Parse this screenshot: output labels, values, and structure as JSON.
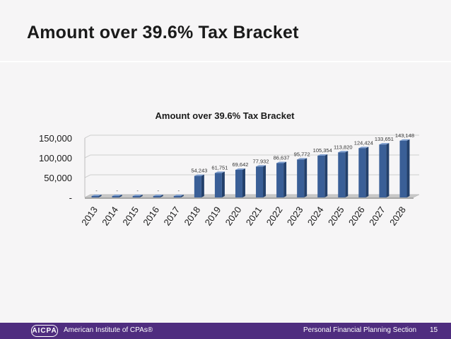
{
  "slide": {
    "title": "Amount over 39.6% Tax Bracket"
  },
  "footer": {
    "logo_text": "AICPA",
    "org_name": "American Institute of CPAs®",
    "section": "Personal Financial Planning Section",
    "page_number": "15"
  },
  "colors": {
    "bar": "#3a5f97",
    "footer": "#4f2d7f"
  },
  "chart_data": {
    "type": "bar",
    "title": "Amount over 39.6% Tax Bracket",
    "categories": [
      "2013",
      "2014",
      "2015",
      "2016",
      "2017",
      "2018",
      "2019",
      "2020",
      "2021",
      "2022",
      "2023",
      "2024",
      "2025",
      "2026",
      "2027",
      "2028"
    ],
    "values": [
      0,
      0,
      0,
      0,
      0,
      54243,
      61751,
      69642,
      77932,
      86637,
      95772,
      105354,
      113820,
      124424,
      133651,
      143148
    ],
    "data_labels": [
      "-",
      "-",
      "-",
      "-",
      "-",
      "54,243",
      "61,751",
      "69,642",
      "77,932",
      "86,637",
      "95,772",
      "105,354",
      "113,820",
      "124,424",
      "133,651",
      "143,148"
    ],
    "yticks": [
      {
        "value": 0,
        "label": "-"
      },
      {
        "value": 50000,
        "label": "50,000"
      },
      {
        "value": 100000,
        "label": "100,000"
      },
      {
        "value": 150000,
        "label": "150,000"
      }
    ],
    "ylim": [
      0,
      150000
    ],
    "xlabel": "",
    "ylabel": "",
    "grid": true,
    "legend": "none"
  }
}
